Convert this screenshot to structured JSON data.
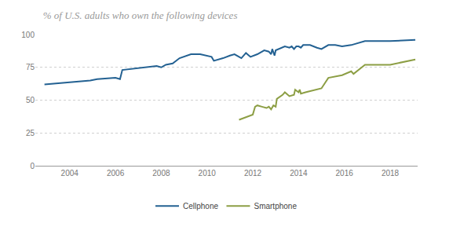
{
  "chart_data": {
    "type": "line",
    "title": "% of U.S. adults who own the following devices",
    "xlim": [
      2002.5,
      2019.2
    ],
    "xticks": [
      2004,
      2006,
      2008,
      2010,
      2012,
      2014,
      2016,
      2018
    ],
    "ylim": [
      0,
      100
    ],
    "yticks": [
      0,
      25,
      50,
      75,
      100
    ],
    "grid": true,
    "legend": "bottom",
    "series": [
      {
        "name": "Cellphone",
        "color": "#236192",
        "x": [
          2002.9,
          2004.9,
          2005.2,
          2006.0,
          2006.2,
          2006.3,
          2007.8,
          2008.0,
          2008.2,
          2008.5,
          2008.8,
          2009.3,
          2009.7,
          2010.2,
          2010.3,
          2010.7,
          2011.0,
          2011.2,
          2011.4,
          2011.5,
          2011.7,
          2011.9,
          2012.2,
          2012.4,
          2012.5,
          2012.7,
          2012.8,
          2012.85,
          2012.95,
          2013.0,
          2013.4,
          2013.6,
          2013.7,
          2013.8,
          2013.9,
          2014.0,
          2014.1,
          2014.2,
          2014.5,
          2014.8,
          2015.0,
          2015.3,
          2015.6,
          2015.9,
          2016.3,
          2016.9,
          2018.0,
          2019.1
        ],
        "values": [
          62,
          65,
          66,
          67,
          66,
          73,
          76,
          75,
          77,
          78,
          82,
          85,
          85,
          83,
          80,
          82,
          84,
          85,
          83,
          82,
          86,
          83,
          85,
          87,
          88,
          87,
          85,
          89,
          84,
          88,
          91,
          90,
          91,
          89,
          91,
          91,
          90,
          92,
          92,
          90,
          89,
          92,
          92,
          91,
          92,
          95,
          95,
          96
        ]
      },
      {
        "name": "Smartphone",
        "color": "#8c9e44",
        "x": [
          2011.4,
          2012.0,
          2012.1,
          2012.2,
          2012.4,
          2012.6,
          2012.7,
          2012.8,
          2012.9,
          2013.0,
          2013.05,
          2013.3,
          2013.4,
          2013.6,
          2013.8,
          2013.85,
          2014.0,
          2014.05,
          2014.1,
          2014.3,
          2015.0,
          2015.3,
          2015.9,
          2016.3,
          2016.4,
          2016.9,
          2018.0,
          2019.1
        ],
        "values": [
          35,
          39,
          45,
          46,
          45,
          44,
          45,
          43,
          46,
          45,
          51,
          54,
          56,
          53,
          54,
          58,
          56,
          58,
          55,
          56,
          59,
          67,
          69,
          72,
          70,
          77,
          77,
          81
        ]
      }
    ]
  }
}
